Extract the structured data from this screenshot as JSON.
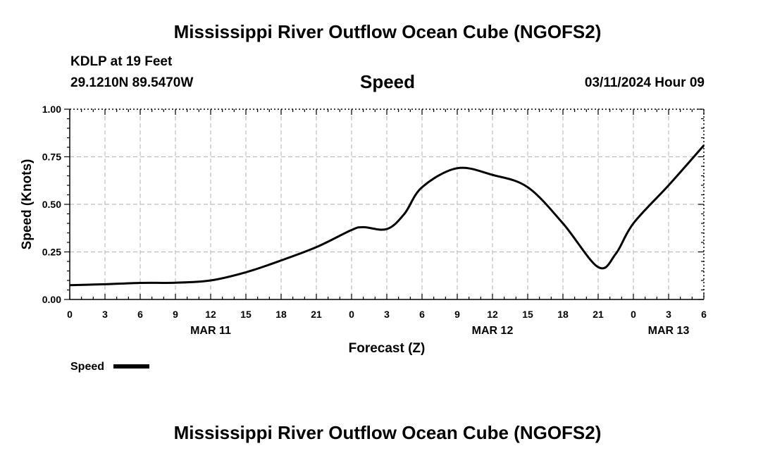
{
  "page": {
    "title_top": "Mississippi River Outflow Ocean Cube (NGOFS2)",
    "title_bottom": "Mississippi River Outflow Ocean Cube (NGOFS2)",
    "station": "KDLP at 19 Feet",
    "coords": "29.1210N  89.5470W",
    "variable": "Speed",
    "datetime": "03/11/2024 Hour 09"
  },
  "chart_data": {
    "type": "line",
    "title": "Speed",
    "xlabel": "Forecast (Z)",
    "ylabel": "Speed (Knots)",
    "xlim": [
      0,
      54
    ],
    "ylim": [
      0,
      1
    ],
    "grid": true,
    "yticks": [
      0,
      0.25,
      0.5,
      0.75,
      1.0
    ],
    "ytick_labels": [
      "0.00",
      "0.25",
      "0.50",
      "0.75",
      "1.00"
    ],
    "xticks": [
      0,
      3,
      6,
      9,
      12,
      15,
      18,
      21,
      24,
      27,
      30,
      33,
      36,
      39,
      42,
      45,
      48,
      51,
      54
    ],
    "xtick_labels": [
      "0",
      "3",
      "6",
      "9",
      "12",
      "15",
      "18",
      "21",
      "0",
      "3",
      "6",
      "9",
      "12",
      "15",
      "18",
      "21",
      "0",
      "3",
      "6"
    ],
    "date_labels": [
      {
        "x": 12,
        "label": "MAR 11"
      },
      {
        "x": 36,
        "label": "MAR 12"
      },
      {
        "x": 51,
        "label": "MAR 13"
      }
    ],
    "legend": {
      "label": "Speed",
      "position": "bottom-left"
    },
    "series": [
      {
        "name": "Speed",
        "color": "#000000",
        "x": [
          0,
          3,
          6,
          9,
          12,
          15,
          18,
          21,
          24,
          25,
          27,
          28.5,
          30,
          33,
          36,
          39,
          42,
          45,
          46.5,
          48,
          51,
          54
        ],
        "y": [
          0.075,
          0.08,
          0.087,
          0.088,
          0.1,
          0.143,
          0.205,
          0.275,
          0.365,
          0.38,
          0.37,
          0.45,
          0.59,
          0.69,
          0.655,
          0.59,
          0.4,
          0.17,
          0.24,
          0.4,
          0.6,
          0.81
        ]
      }
    ]
  }
}
